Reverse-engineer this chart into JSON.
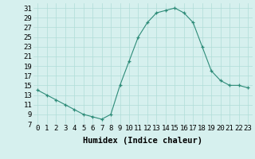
{
  "x": [
    0,
    1,
    2,
    3,
    4,
    5,
    6,
    7,
    8,
    9,
    10,
    11,
    12,
    13,
    14,
    15,
    16,
    17,
    18,
    19,
    20,
    21,
    22,
    23
  ],
  "y": [
    14,
    13,
    12,
    11,
    10,
    9,
    8.5,
    8,
    9,
    15,
    20,
    25,
    28,
    30,
    30.5,
    31,
    30,
    28,
    23,
    18,
    16,
    15,
    15,
    14.5
  ],
  "line_color": "#2d8b78",
  "marker_color": "#2d8b78",
  "bg_color": "#d6f0ee",
  "grid_color": "#b0ddd8",
  "xlabel": "Humidex (Indice chaleur)",
  "ylim": [
    7,
    32
  ],
  "xlim": [
    -0.5,
    23.5
  ],
  "yticks": [
    7,
    9,
    11,
    13,
    15,
    17,
    19,
    21,
    23,
    25,
    27,
    29,
    31
  ],
  "xticks": [
    0,
    1,
    2,
    3,
    4,
    5,
    6,
    7,
    8,
    9,
    10,
    11,
    12,
    13,
    14,
    15,
    16,
    17,
    18,
    19,
    20,
    21,
    22,
    23
  ],
  "font_size": 6.5,
  "label_font_size": 7.5
}
